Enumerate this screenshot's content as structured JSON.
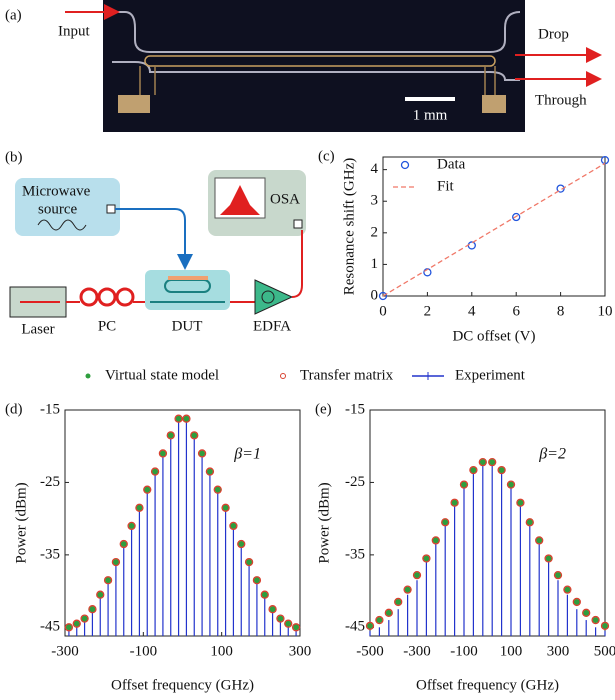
{
  "panel_a": {
    "label": "(a)",
    "input": "Input",
    "drop": "Drop",
    "through": "Through",
    "scale": "1 mm"
  },
  "panel_b": {
    "label": "(b)",
    "microwave_line1": "Microwave",
    "microwave_line2": "source",
    "osa": "OSA",
    "laser": "Laser",
    "pc": "PC",
    "dut": "DUT",
    "edfa": "EDFA"
  },
  "chart_data": [
    {
      "type": "scatter",
      "panel": "(c)",
      "xlabel": "DC offset (V)",
      "ylabel": "Resonance shift (GHz)",
      "xlim": [
        0,
        10
      ],
      "ylim": [
        0,
        4.4
      ],
      "xticks": [
        0,
        2,
        4,
        6,
        8,
        10
      ],
      "yticks": [
        0,
        1,
        2,
        3,
        4
      ],
      "legend": "upper left",
      "series": [
        {
          "name": "Data",
          "color": "#2255dd",
          "marker": "circle",
          "x": [
            0,
            2,
            4,
            6,
            8,
            10
          ],
          "values": [
            0,
            0.75,
            1.6,
            2.5,
            3.4,
            4.3
          ]
        },
        {
          "name": "Fit",
          "color": "#f07868",
          "marker": "dashed",
          "x": [
            0,
            10
          ],
          "values": [
            0,
            4.2
          ]
        }
      ]
    },
    {
      "type": "scatter",
      "panel": "(d)",
      "xlabel": "Offset frequency (GHz)",
      "ylabel": "Power (dBm)",
      "annotation": "β=1",
      "x": [
        -290,
        -270,
        -250,
        -230,
        -210,
        -190,
        -170,
        -150,
        -130,
        -110,
        -90,
        -70,
        -50,
        -30,
        -10,
        10,
        30,
        50,
        70,
        90,
        110,
        130,
        150,
        170,
        190,
        210,
        230,
        250,
        270,
        290
      ],
      "xlim": [
        -300,
        300
      ],
      "xticks": [
        -300,
        -100,
        100,
        300
      ],
      "ylim": [
        -46.2,
        -15
      ],
      "yticks": [
        -45,
        -35,
        -25,
        -15
      ],
      "legend": "above",
      "series": [
        {
          "name": "Virtual state model",
          "color": "#2e9e3e",
          "marker": "dot",
          "values": [
            -45,
            -44.5,
            -43.8,
            -42.5,
            -40.5,
            -38.5,
            -36,
            -33.5,
            -31,
            -28.5,
            -26,
            -23.5,
            -21,
            -18.5,
            -16.2,
            -16.2,
            -18.5,
            -21,
            -23.5,
            -26,
            -28.5,
            -31,
            -33.5,
            -36,
            -38.5,
            -40.5,
            -42.5,
            -43.8,
            -44.5,
            -45
          ]
        },
        {
          "name": "Transfer matrix",
          "color": "#d8402e",
          "marker": "circle",
          "values": [
            -45,
            -44.5,
            -43.8,
            -42.5,
            -40.5,
            -38.5,
            -36,
            -33.5,
            -31,
            -28.5,
            -26,
            -23.5,
            -21,
            -18.5,
            -16.2,
            -16.2,
            -18.5,
            -21,
            -23.5,
            -26,
            -28.5,
            -31,
            -33.5,
            -36,
            -38.5,
            -40.5,
            -42.5,
            -43.8,
            -44.5,
            -45
          ]
        },
        {
          "name": "Experiment",
          "color": "#2233cc",
          "marker": "stem",
          "values": [
            -45.3,
            -44.8,
            -44,
            -43,
            -41,
            -39,
            -36.5,
            -34,
            -31.5,
            -29,
            -26.5,
            -24,
            -21.5,
            -19,
            -16.5,
            -16.5,
            -19,
            -21.5,
            -24,
            -26.5,
            -29,
            -31.5,
            -34,
            -36.5,
            -39,
            -41,
            -43,
            -44,
            -44.8,
            -45.3
          ]
        }
      ]
    },
    {
      "type": "scatter",
      "panel": "(e)",
      "xlabel": "Offset frequency (GHz)",
      "ylabel": "Power (dBm)",
      "annotation": "β=2",
      "x": [
        -500,
        -460,
        -420,
        -380,
        -340,
        -300,
        -260,
        -220,
        -180,
        -140,
        -100,
        -60,
        -20,
        20,
        60,
        100,
        140,
        180,
        220,
        260,
        300,
        340,
        380,
        420,
        460,
        500
      ],
      "xlim": [
        -500,
        500
      ],
      "xticks": [
        -500,
        -300,
        -100,
        100,
        300,
        500
      ],
      "ylim": [
        -46.2,
        -15
      ],
      "yticks": [
        -45,
        -35,
        -25,
        -15
      ],
      "series": [
        {
          "color": "#2e9e3e",
          "marker": "dot",
          "values": [
            -44.8,
            -44,
            -43,
            -41.5,
            -39.8,
            -37.8,
            -35.5,
            -33,
            -30.5,
            -27.8,
            -25.3,
            -23.3,
            -22.2,
            -22.2,
            -23.3,
            -25.3,
            -27.8,
            -30.5,
            -33,
            -35.5,
            -37.8,
            -39.8,
            -41.5,
            -43,
            -44,
            -44.8
          ]
        },
        {
          "color": "#d8402e",
          "marker": "circle",
          "values": [
            -44.8,
            -44,
            -43,
            -41.5,
            -39.8,
            -37.8,
            -35.5,
            -33,
            -30.5,
            -27.8,
            -25.3,
            -23.3,
            -22.2,
            -22.2,
            -23.3,
            -25.3,
            -27.8,
            -30.5,
            -33,
            -35.5,
            -37.8,
            -39.8,
            -41.5,
            -43,
            -44,
            -44.8
          ]
        },
        {
          "color": "#2233cc",
          "marker": "stem",
          "values": [
            -45.5,
            -45,
            -44,
            -42.5,
            -40.5,
            -38.5,
            -36,
            -33.5,
            -31,
            -28.3,
            -25.8,
            -23.8,
            -22.7,
            -22.7,
            -23.8,
            -25.8,
            -28.3,
            -31,
            -33.5,
            -36,
            -38.5,
            -40.5,
            -42.5,
            -44,
            -45,
            -45.5
          ]
        }
      ]
    }
  ]
}
